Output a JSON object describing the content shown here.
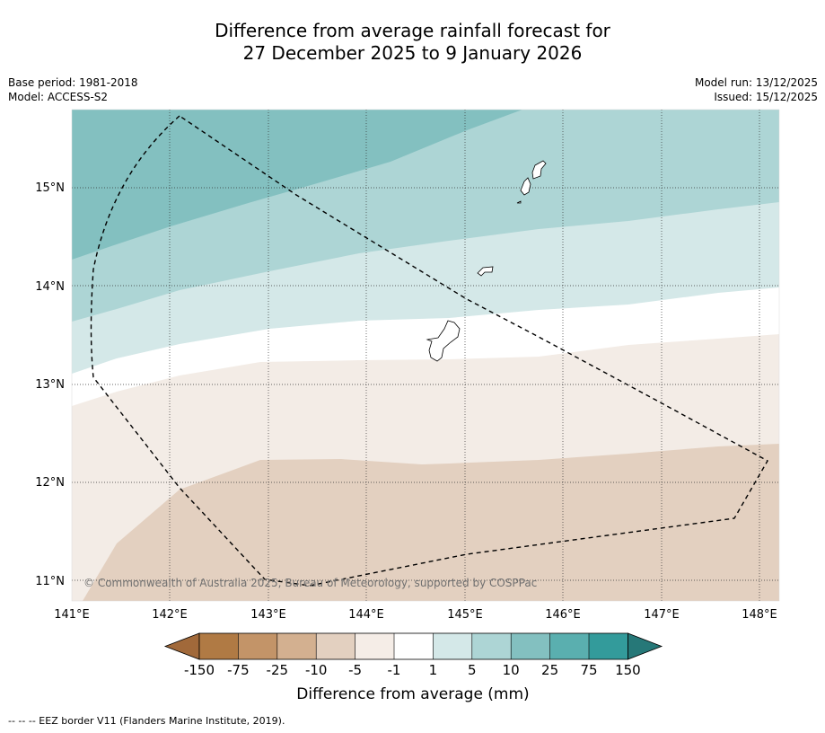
{
  "title": {
    "line1": "Difference from average rainfall forecast for",
    "line2": "27 December 2025 to 9 January 2026"
  },
  "meta_left": {
    "base_period": "Base period: 1981-2018",
    "model": "Model: ACCESS-S2"
  },
  "meta_right": {
    "model_run": "Model run: 13/12/2025",
    "issued": "Issued: 15/12/2025"
  },
  "map": {
    "lon_range": [
      141,
      148.2
    ],
    "lat_range": [
      10.8,
      15.8
    ],
    "lon_ticks": [
      141,
      142,
      143,
      144,
      145,
      146,
      147,
      148
    ],
    "lat_ticks": [
      11,
      12,
      13,
      14,
      15
    ],
    "lon_labels": [
      "141°E",
      "142°E",
      "143°E",
      "144°E",
      "145°E",
      "146°E",
      "147°E",
      "148°E"
    ],
    "lat_labels": [
      "11°N",
      "12°N",
      "13°N",
      "14°N",
      "15°N"
    ],
    "copyright": "© Commonwealth of Australia 2025, Bureau of Meteorology, supported by COSPPac",
    "colors": {
      "band_neg10": "#e3d0c0",
      "band_neg5": "#f3ece6",
      "band_neutral": "#ffffff",
      "band_pos5": "#d4e8e8",
      "band_pos10": "#add5d5",
      "band_pos25": "#83c0c0"
    }
  },
  "colorbar": {
    "labels": [
      "-150",
      "-75",
      "-25",
      "-10",
      "-5",
      "-1",
      "1",
      "5",
      "10",
      "25",
      "75",
      "150"
    ],
    "colors": [
      "#a1693a",
      "#b07a44",
      "#c39468",
      "#d3b090",
      "#e3d0c0",
      "#f5ede7",
      "#ffffff",
      "#d4e8e8",
      "#add5d5",
      "#83c0c0",
      "#5aafaf",
      "#339b9b",
      "#267878"
    ],
    "title": "Difference from average (mm)"
  },
  "footer": "--  --  -- EEZ border V11 (Flanders Marine Institute, 2019)."
}
